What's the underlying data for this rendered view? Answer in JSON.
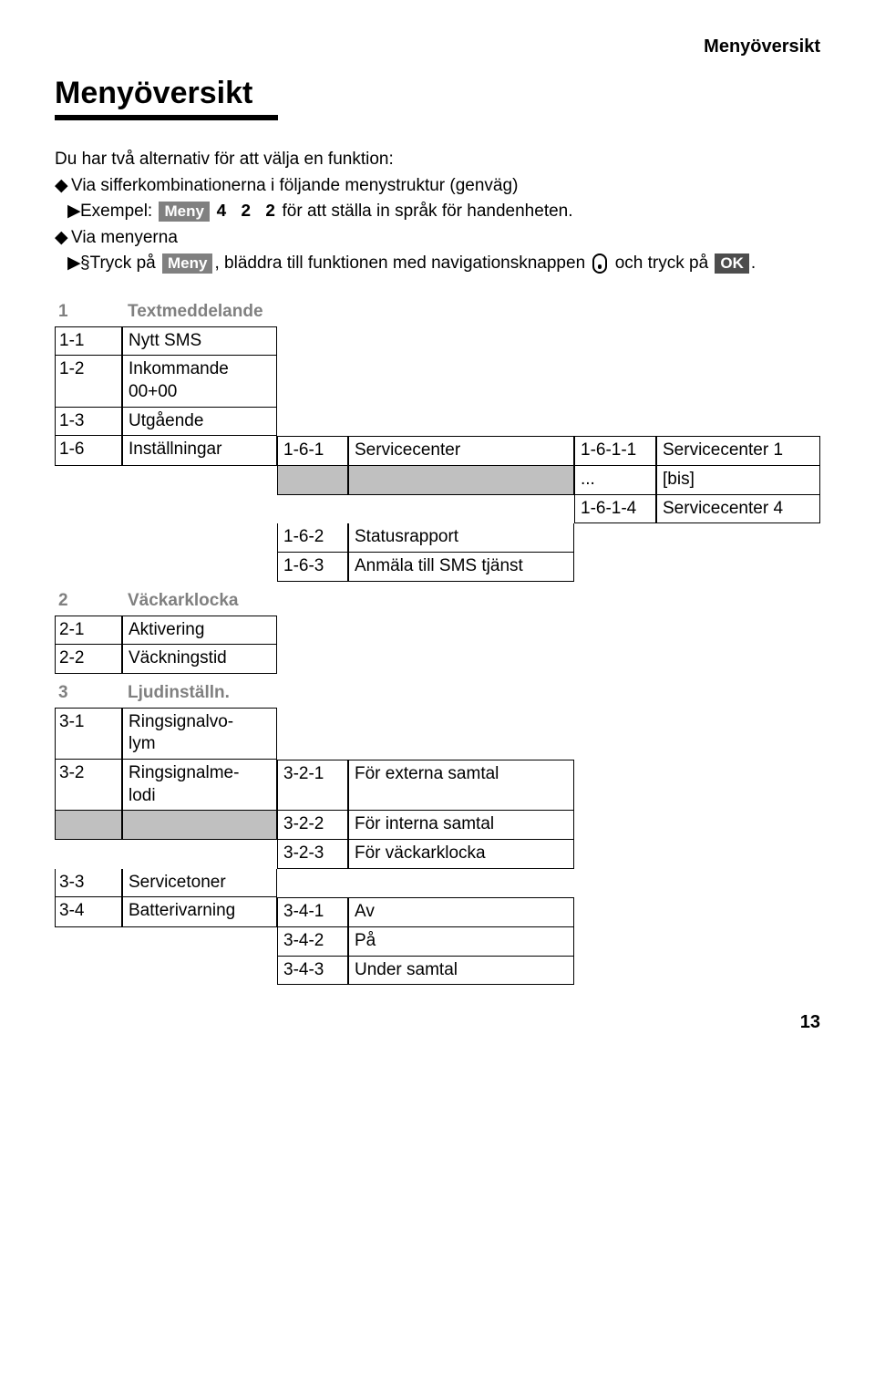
{
  "header_right": "Menyöversikt",
  "main_heading": "Menyöversikt",
  "intro_line": "Du har två alternativ för att välja en funktion:",
  "bullet1": "Via sifferkombinationerna i följande menystruktur (genväg)",
  "example_label": "Exempel:",
  "meny_key": "Meny",
  "example_digits": "4 2 2",
  "example_tail": "för att ställa in språk för handenheten.",
  "bullet2": "Via menyerna",
  "section_prefix": "§",
  "bullet2_sub_a": "Tryck på ",
  "bullet2_sub_b": ", bläddra till funktionen med navigationsknappen ",
  "bullet2_sub_c": " och tryck på ",
  "ok_key": "OK",
  "period": ".",
  "s1": {
    "num": "1",
    "title": "Textmeddelande",
    "r1": {
      "n": "1-1",
      "l": "Nytt SMS"
    },
    "r2": {
      "n": "1-2",
      "la": "Inkommande",
      "lb": "00+00"
    },
    "r3": {
      "n": "1-3",
      "l": "Utgående"
    },
    "r4": {
      "n": "1-6",
      "l": "Inställningar",
      "c2": "1-6-1",
      "l2": "Servicecenter",
      "c3": "1-6-1-1",
      "l3": "Servicecenter 1"
    },
    "r5": {
      "c3": "...",
      "l3": "[bis]"
    },
    "r6": {
      "c3": "1-6-1-4",
      "l3": "Servicecenter 4"
    },
    "r7": {
      "c2": "1-6-2",
      "l2": "Statusrapport"
    },
    "r8": {
      "c2": "1-6-3",
      "l2": "Anmäla till SMS tjänst"
    }
  },
  "s2": {
    "num": "2",
    "title": "Väckarklocka",
    "r1": {
      "n": "2-1",
      "l": "Aktivering"
    },
    "r2": {
      "n": "2-2",
      "l": "Väckningstid"
    }
  },
  "s3": {
    "num": "3",
    "title": "Ljudinställn.",
    "r1": {
      "n": "3-1",
      "la": "Ringsignalvo-",
      "lb": "lym"
    },
    "r2": {
      "n": "3-2",
      "la": "Ringsignalme-",
      "lb": "lodi",
      "c2": "3-2-1",
      "l2": "För externa samtal"
    },
    "r3": {
      "c2": "3-2-2",
      "l2": "För interna samtal"
    },
    "r4": {
      "c2": "3-2-3",
      "l2": "För väckarklocka"
    },
    "r5": {
      "n": "3-3",
      "l": "Servicetoner"
    },
    "r6": {
      "n": "3-4",
      "l": "Batterivarning",
      "c2": "3-4-1",
      "l2": "Av"
    },
    "r7": {
      "c2": "3-4-2",
      "l2": "På"
    },
    "r8": {
      "c2": "3-4-3",
      "l2": "Under samtal"
    }
  },
  "page_number": "13"
}
